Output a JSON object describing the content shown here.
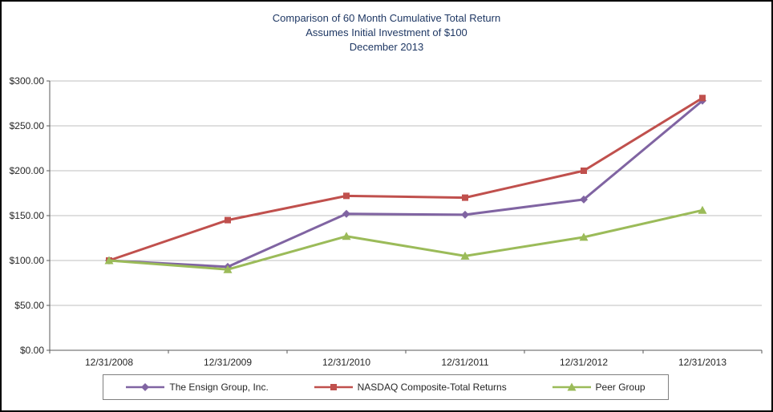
{
  "title": {
    "line1": "Comparison of 60 Month Cumulative Total Return",
    "line2": "Assumes Initial Investment of $100",
    "line3": "December 2013"
  },
  "chart_data": {
    "type": "line",
    "title": "Comparison of 60 Month Cumulative Total Return Assumes Initial Investment of $100 December 2013",
    "categories": [
      "12/31/2008",
      "12/31/2009",
      "12/31/2010",
      "12/31/2011",
      "12/31/2012",
      "12/31/2013"
    ],
    "series": [
      {
        "name": "The Ensign Group, Inc.",
        "marker": "diamond",
        "color": "#8064A2",
        "values": [
          100,
          93,
          152,
          151,
          168,
          278
        ]
      },
      {
        "name": "NASDAQ Composite-Total Returns",
        "marker": "square",
        "color": "#C0504D",
        "values": [
          100,
          145,
          172,
          170,
          200,
          281
        ]
      },
      {
        "name": "Peer Group",
        "marker": "triangle",
        "color": "#9BBB59",
        "values": [
          100,
          90,
          127,
          105,
          126,
          156
        ]
      }
    ],
    "xlabel": "",
    "ylabel": "",
    "ylim": [
      0,
      300
    ],
    "ytick_step": 50,
    "ytick_format": "$#.00",
    "grid": true,
    "legend_position": "bottom",
    "colors": {
      "gridline": "#BFBFBF",
      "axis": "#595959",
      "title_text": "#1F3864",
      "tick_text": "#262626"
    }
  }
}
